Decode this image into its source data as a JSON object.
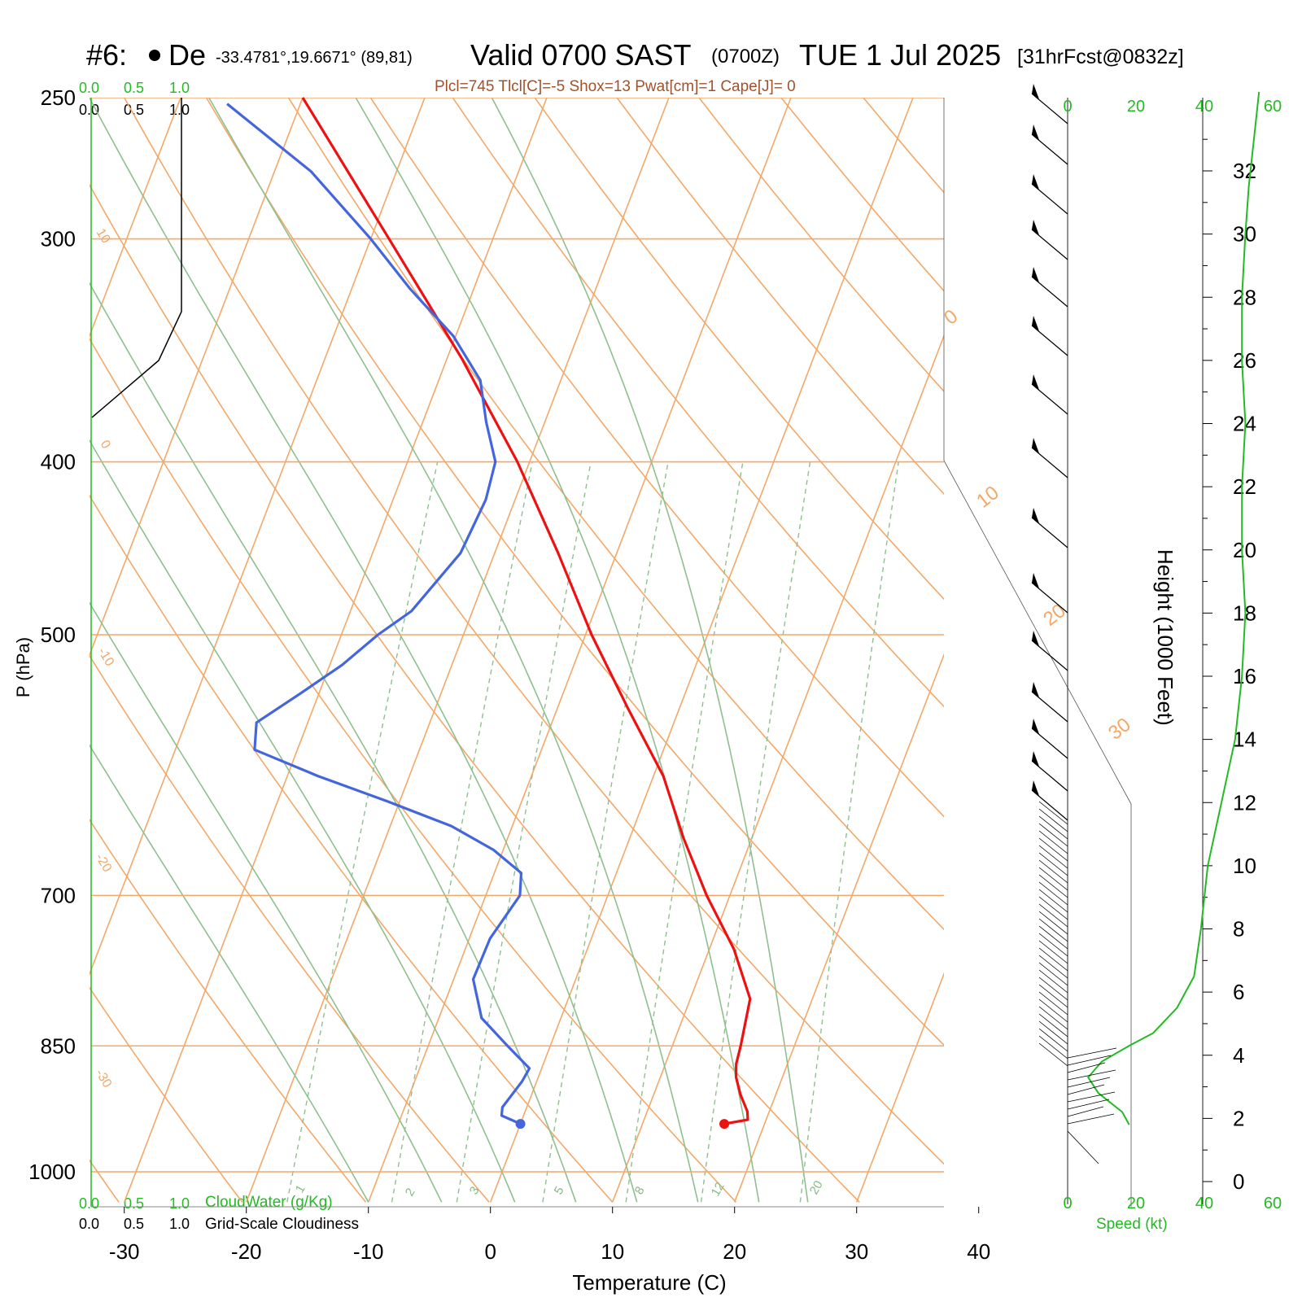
{
  "header": {
    "station": "#6:",
    "station_name": "De",
    "coords": "-33.4781°,19.6671° (89,81)",
    "valid_main": "Valid 0700 SAST",
    "valid_z": "(0700Z)",
    "date": "TUE 1 Jul 2025",
    "forecast": "[31hrFcst@0832z]",
    "indices": "Plcl=745 Tlcl[C]=-5 Shox=13 Pwat[cm]=1 Cape[J]= 0"
  },
  "cloud_scale": {
    "top_green": [
      "0.0",
      "0.5",
      "1.0"
    ],
    "top_black": [
      "0.0",
      "0.5",
      "1.0"
    ],
    "bottom_green": [
      "0.0",
      "0.5",
      "1.0"
    ],
    "bottom_black": [
      "0.0",
      "0.5",
      "1.0"
    ],
    "cloudwater_label": "CloudWater (g/Kg)",
    "cloudiness_label": "Grid-Scale Cloudiness"
  },
  "chart_data": {
    "type": "line",
    "subtype": "skew-T log-P sounding",
    "xlabel": "Temperature (C)",
    "ylabel": "P (hPa)",
    "x_ticks": [
      -30,
      -20,
      -10,
      0,
      10,
      20,
      30,
      40
    ],
    "p_ticks": [
      250,
      300,
      400,
      500,
      700,
      850,
      1000
    ],
    "p_range": [
      250,
      1040
    ],
    "series": [
      {
        "color": "#ee1111",
        "values": [
          {
            "p": 940,
            "t": 16.7
          },
          {
            "p": 935,
            "t": 18.5
          },
          {
            "p": 925,
            "t": 18.2
          },
          {
            "p": 905,
            "t": 17.1
          },
          {
            "p": 885,
            "t": 16.2
          },
          {
            "p": 870,
            "t": 15.8
          },
          {
            "p": 850,
            "t": 15.6
          },
          {
            "p": 800,
            "t": 14.9
          },
          {
            "p": 750,
            "t": 12.0
          },
          {
            "p": 700,
            "t": 8.1
          },
          {
            "p": 650,
            "t": 4.4
          },
          {
            "p": 600,
            "t": 0.8
          },
          {
            "p": 550,
            "t": -4.2
          },
          {
            "p": 500,
            "t": -9.5
          },
          {
            "p": 450,
            "t": -14.8
          },
          {
            "p": 400,
            "t": -21.0
          },
          {
            "p": 350,
            "t": -28.8
          },
          {
            "p": 300,
            "t": -38.5
          },
          {
            "p": 250,
            "t": -50.0
          }
        ]
      },
      {
        "color": "#4466dd",
        "values": [
          {
            "p": 940,
            "t": 0.0
          },
          {
            "p": 930,
            "t": -1.8
          },
          {
            "p": 920,
            "t": -2.0
          },
          {
            "p": 890,
            "t": -1.2
          },
          {
            "p": 875,
            "t": -1.0
          },
          {
            "p": 850,
            "t": -3.5
          },
          {
            "p": 820,
            "t": -6.5
          },
          {
            "p": 780,
            "t": -8.4
          },
          {
            "p": 740,
            "t": -8.3
          },
          {
            "p": 700,
            "t": -7.2
          },
          {
            "p": 680,
            "t": -7.8
          },
          {
            "p": 660,
            "t": -10.8
          },
          {
            "p": 640,
            "t": -15.0
          },
          {
            "p": 620,
            "t": -21.0
          },
          {
            "p": 600,
            "t": -27.5
          },
          {
            "p": 580,
            "t": -33.5
          },
          {
            "p": 560,
            "t": -34.2
          },
          {
            "p": 540,
            "t": -31.6
          },
          {
            "p": 520,
            "t": -29.0
          },
          {
            "p": 500,
            "t": -27.0
          },
          {
            "p": 485,
            "t": -25.0
          },
          {
            "p": 450,
            "t": -22.8
          },
          {
            "p": 420,
            "t": -22.4
          },
          {
            "p": 400,
            "t": -22.8
          },
          {
            "p": 380,
            "t": -24.8
          },
          {
            "p": 360,
            "t": -26.6
          },
          {
            "p": 340,
            "t": -30.2
          },
          {
            "p": 320,
            "t": -35.2
          },
          {
            "p": 300,
            "t": -40.0
          },
          {
            "p": 275,
            "t": -47.0
          },
          {
            "p": 252,
            "t": -56.0
          }
        ]
      }
    ],
    "dry_adiabat_labels": [
      "10",
      "0",
      "-10",
      "-20",
      "-30",
      "0",
      "10",
      "20",
      "30"
    ],
    "mixing_ratio_labels": [
      "1",
      "2",
      "3",
      "5",
      "8",
      "12",
      "20"
    ],
    "wind": {
      "speed_axis": [
        "0",
        "20",
        "40",
        "60"
      ],
      "speed_label": "Speed (kt)",
      "height_label": "Height (1000 Feet)",
      "height_ticks": [
        "0",
        "2",
        "4",
        "6",
        "8",
        "10",
        "12",
        "14",
        "16",
        "18",
        "20",
        "22",
        "24",
        "26",
        "28",
        "30",
        "32"
      ],
      "profile_kt": [
        {
          "h": 1.8,
          "s": 18
        },
        {
          "h": 2.2,
          "s": 16
        },
        {
          "h": 2.8,
          "s": 9
        },
        {
          "h": 3.3,
          "s": 6
        },
        {
          "h": 3.8,
          "s": 10
        },
        {
          "h": 4.3,
          "s": 18
        },
        {
          "h": 4.7,
          "s": 25
        },
        {
          "h": 5.5,
          "s": 32
        },
        {
          "h": 6.5,
          "s": 37
        },
        {
          "h": 8.0,
          "s": 39
        },
        {
          "h": 10.0,
          "s": 41
        },
        {
          "h": 12.0,
          "s": 45
        },
        {
          "h": 14.0,
          "s": 49
        },
        {
          "h": 16.0,
          "s": 51
        },
        {
          "h": 18.0,
          "s": 52
        },
        {
          "h": 20.0,
          "s": 51
        },
        {
          "h": 22.0,
          "s": 51
        },
        {
          "h": 24.0,
          "s": 52
        },
        {
          "h": 26.0,
          "s": 51
        },
        {
          "h": 28.0,
          "s": 51
        },
        {
          "h": 30.0,
          "s": 52
        },
        {
          "h": 31.5,
          "s": 53
        },
        {
          "h": 33.5,
          "s": 55
        },
        {
          "h": 34.5,
          "s": 56
        }
      ]
    }
  }
}
